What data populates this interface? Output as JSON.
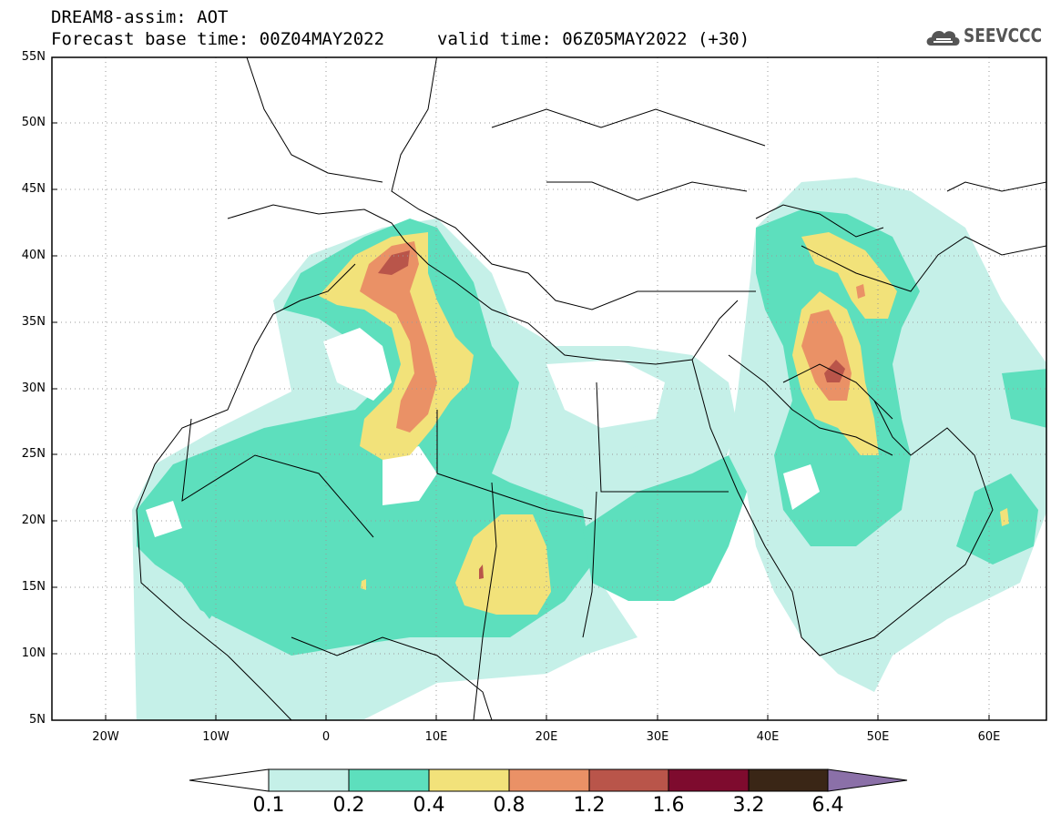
{
  "header": {
    "title": "DREAM8-assim: AOT",
    "base_time": "Forecast base time: 00Z04MAY2022",
    "valid_time": "valid time: 06Z05MAY2022 (+30)"
  },
  "logo": {
    "text": "SEEVCCC",
    "icon": "cloud-logo-icon"
  },
  "axes": {
    "lat_ticks": [
      "55N",
      "50N",
      "45N",
      "40N",
      "35N",
      "30N",
      "25N",
      "20N",
      "15N",
      "10N",
      "5N"
    ],
    "lon_ticks": [
      "20W",
      "10W",
      "0",
      "10E",
      "20E",
      "30E",
      "40E",
      "50E",
      "60E"
    ],
    "lat_range": [
      5,
      55
    ],
    "lon_range": [
      -25,
      65
    ],
    "grid": true
  },
  "colorbar": {
    "labels": [
      "0.1",
      "0.2",
      "0.4",
      "0.8",
      "1.2",
      "1.6",
      "3.2",
      "6.4"
    ],
    "colors": [
      "#ffffff",
      "#c5f0e8",
      "#5ddfbd",
      "#f2e27a",
      "#ea9166",
      "#b9554a",
      "#7e0b2e",
      "#3a2616",
      "#8b70a8"
    ]
  }
}
